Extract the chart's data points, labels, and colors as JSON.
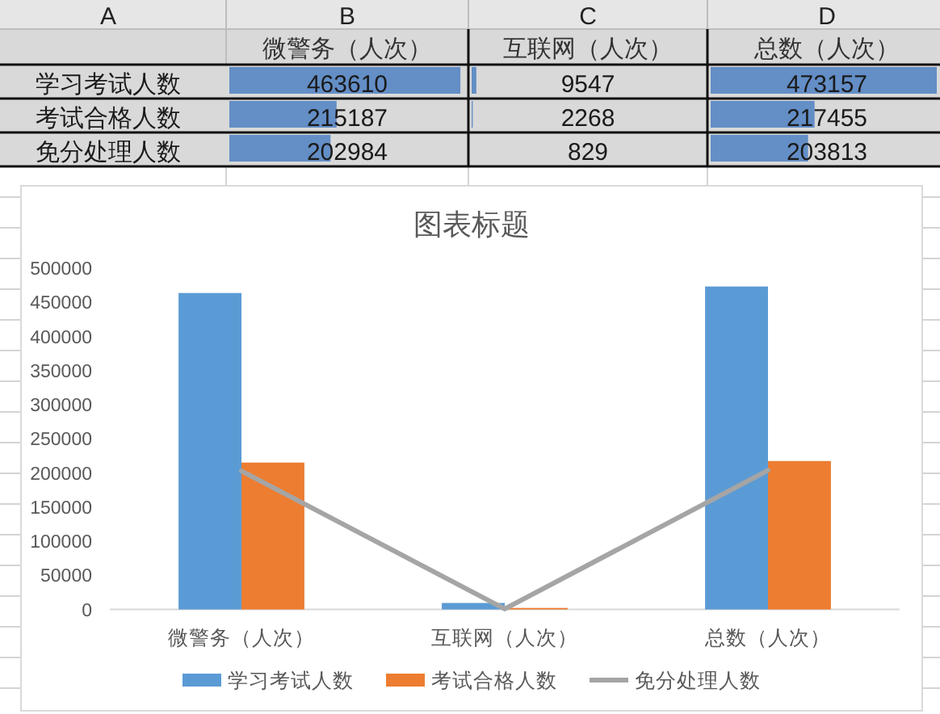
{
  "chart_data": {
    "type": "bar",
    "title": "图表标题",
    "categories": [
      "微警务（人次）",
      "互联网（人次）",
      "总数（人次）"
    ],
    "series": [
      {
        "name": "学习考试人数",
        "color": "#5b9bd5",
        "values": [
          463610,
          9547,
          473157
        ]
      },
      {
        "name": "考试合格人数",
        "color": "#ed7d31",
        "values": [
          215187,
          2268,
          217455
        ]
      },
      {
        "name": "免分处理人数",
        "type": "line",
        "color": "#a5a5a5",
        "values": [
          202984,
          829,
          203813
        ]
      }
    ],
    "ylim": [
      0,
      500000
    ],
    "yticks": [
      0,
      50000,
      100000,
      150000,
      200000,
      250000,
      300000,
      350000,
      400000,
      450000,
      500000
    ],
    "grid": false,
    "legend": "bottom",
    "data_labels": true,
    "annotations": [
      "A",
      "B",
      "C",
      "D"
    ]
  }
}
